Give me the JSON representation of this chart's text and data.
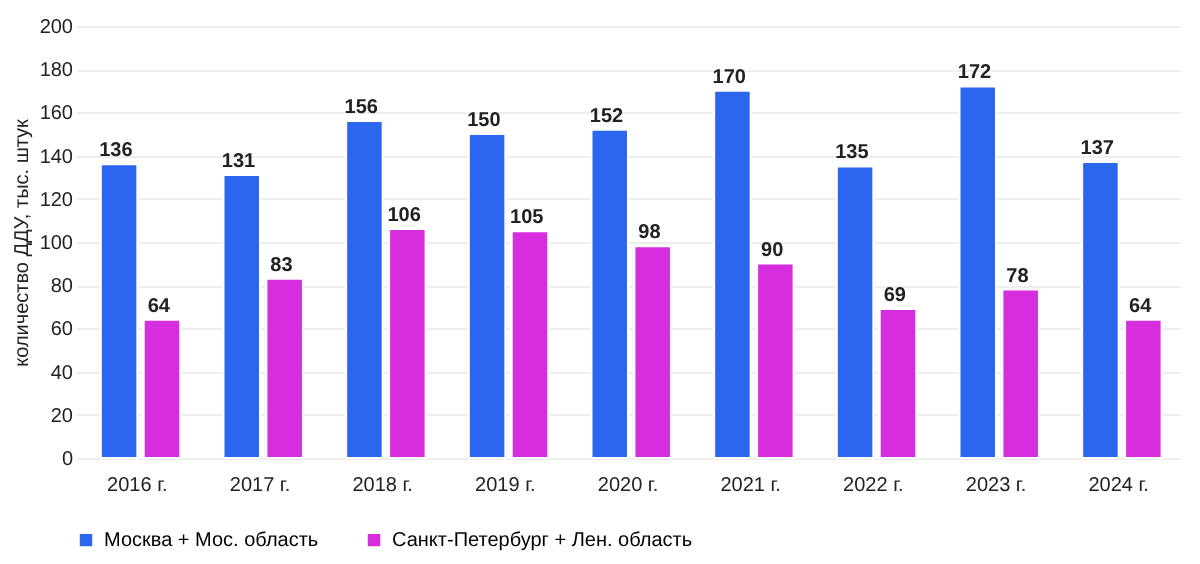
{
  "chart_data": {
    "type": "bar",
    "ylabel": "количество ДДУ, тыс. штук",
    "categories": [
      "2016 г.",
      "2017 г.",
      "2018 г.",
      "2019 г.",
      "2020 г.",
      "2021 г.",
      "2022 г.",
      "2023 г.",
      "2024 г."
    ],
    "series": [
      {
        "name": "Москва + Мос. область",
        "color": "#2a66ee",
        "values": [
          136,
          131,
          156,
          150,
          152,
          170,
          135,
          172,
          137
        ]
      },
      {
        "name": "Санкт-Петербург + Лен. область",
        "color": "#d62ddf",
        "values": [
          64,
          83,
          106,
          105,
          98,
          90,
          69,
          78,
          64
        ]
      }
    ],
    "ylim": [
      0,
      200
    ],
    "yticks": [
      0,
      20,
      40,
      60,
      80,
      100,
      120,
      140,
      160,
      180,
      200
    ],
    "grid": "y",
    "legend": "bottom",
    "data_labels": true
  }
}
